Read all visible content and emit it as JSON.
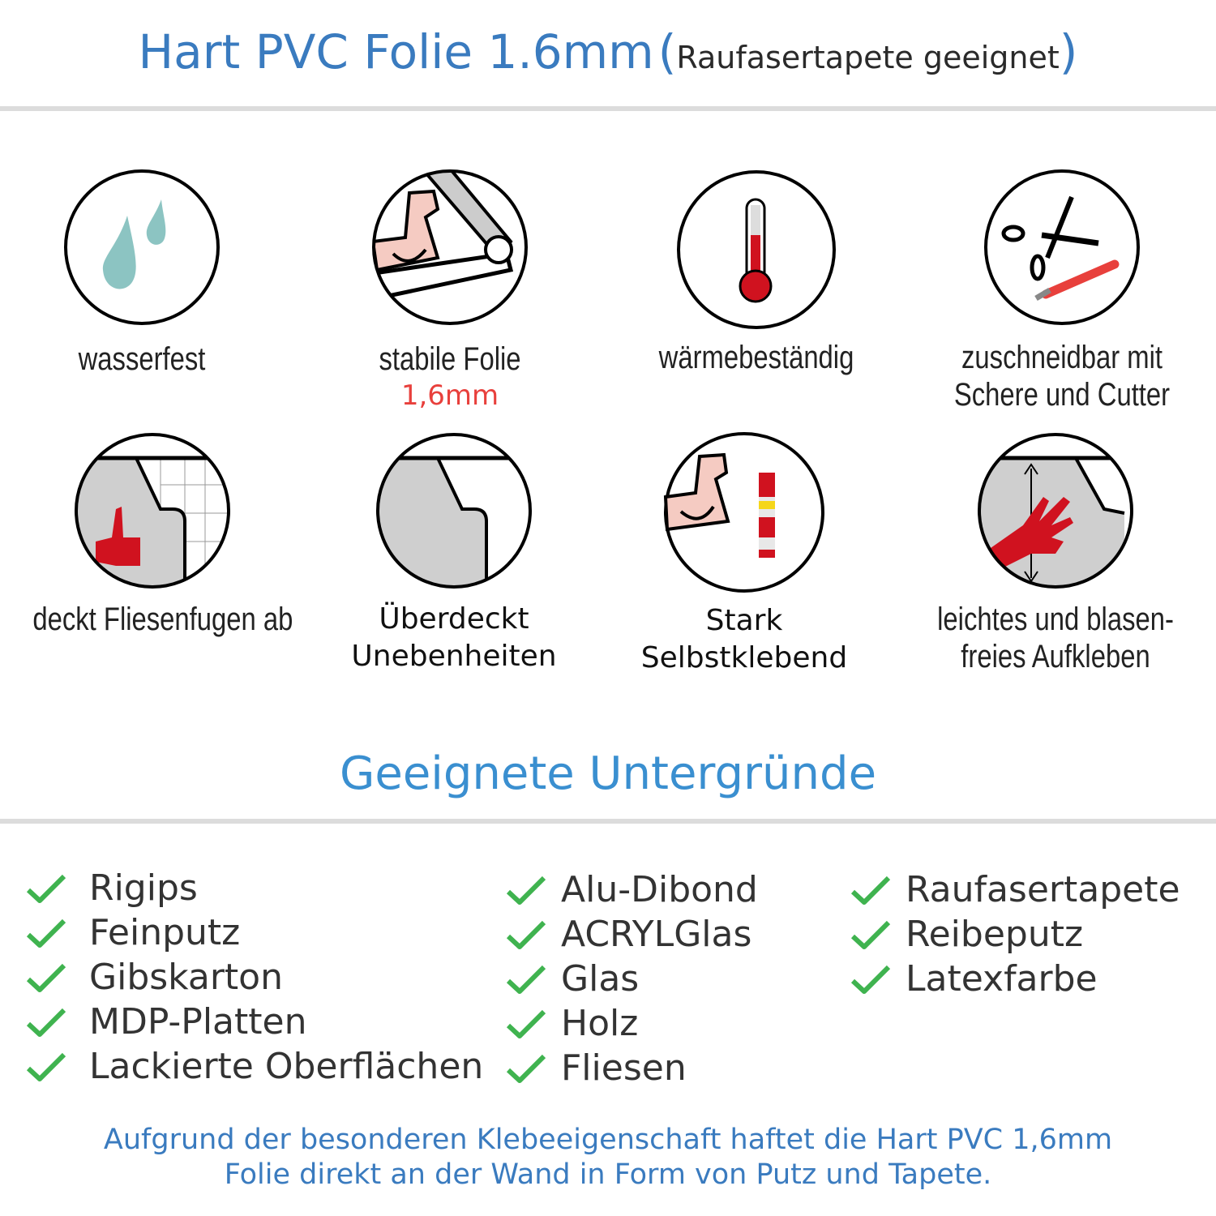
{
  "header": {
    "title": "Hart PVC Folie 1.6mm",
    "paren_open": "(",
    "subtitle": "Raufasertapete geeignet",
    "paren_close": ")"
  },
  "features": [
    {
      "icon": "water-drops-icon",
      "label": "wasserfest"
    },
    {
      "icon": "strong-arm-roll-icon",
      "label": "stabile Folie",
      "sublabel": "1,6mm"
    },
    {
      "icon": "thermometer-icon",
      "label": "wärmebeständig"
    },
    {
      "icon": "scissors-cutter-icon",
      "label_lines": [
        "zuschneidbar mit",
        "Schere und Cutter"
      ]
    },
    {
      "icon": "thumbs-up-tiles-icon",
      "label": "deckt Fliesenfugen ab"
    },
    {
      "icon": "foil-peel-icon",
      "label_lines": [
        "Überdeckt",
        "Unebenheiten"
      ]
    },
    {
      "icon": "strong-arm-glue-icon",
      "label_lines": [
        "Stark",
        "Selbstklebend"
      ]
    },
    {
      "icon": "hand-smoothing-icon",
      "label_lines": [
        "leichtes und blasen-",
        "freies Aufkleben"
      ]
    }
  ],
  "surfaces": {
    "title": "Geeignete Untergründe",
    "columns": [
      [
        "Rigips",
        "Feinputz",
        "Gibskarton",
        "MDP-Platten",
        "Lackierte Oberflächen"
      ],
      [
        "Alu-Dibond",
        "ACRYLGlas",
        "Glas",
        "Holz",
        "Fliesen"
      ],
      [
        "Raufasertapete",
        "Reibeputz",
        "Latexfarbe"
      ]
    ]
  },
  "footer": {
    "lines": [
      "Aufgrund der besonderen Klebeeigenschaft haftet die Hart PVC 1,6mm",
      "Folie direkt an der Wand in Form von Putz und Tapete."
    ]
  },
  "colors": {
    "title_blue": "#3a7bbf",
    "section_blue": "#3a8fd0",
    "check_green": "#3fb34f",
    "accent_red": "#e8403c",
    "icon_red": "#d0121f",
    "drop_teal": "#8cc4c2"
  }
}
